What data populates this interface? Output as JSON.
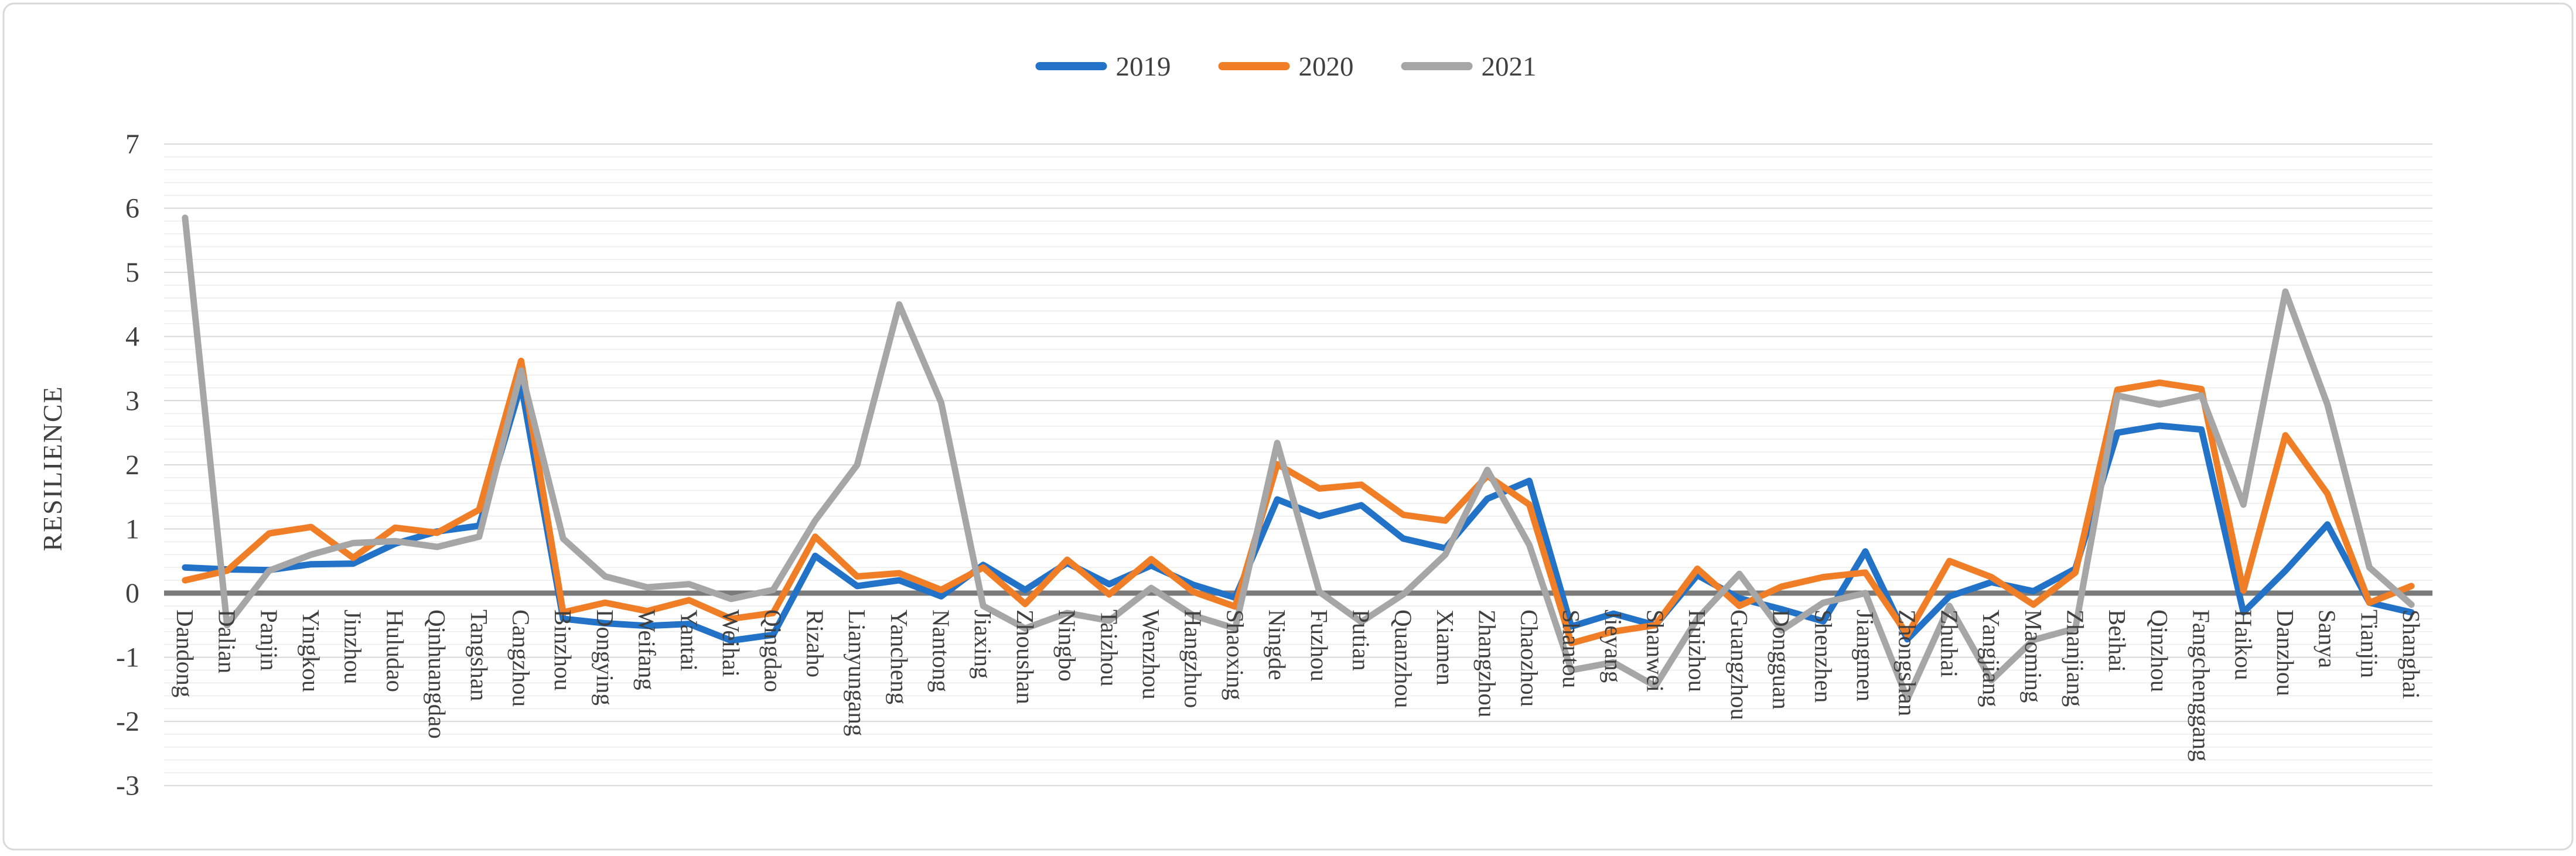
{
  "chart_data": {
    "type": "line",
    "title": "",
    "xlabel": "",
    "ylabel": "RESILIENCE",
    "ylim": [
      -3,
      7
    ],
    "y_major_step": 1,
    "y_minor_step": 0.2,
    "y_tick_labels": [
      "7",
      "6",
      "5",
      "4",
      "3",
      "2",
      "1",
      "0",
      "-1",
      "-2",
      "-3"
    ],
    "grid": true,
    "legend_position": "top-center",
    "categories": [
      "Dandong",
      "Dalian",
      "Panjin",
      "Yingkou",
      "Jinzhou",
      "Huludao",
      "Qinhuangdao",
      "Tangshan",
      "Cangzhou",
      "Binzhou",
      "Dongying",
      "Weifang",
      "Yantai",
      "Weihai",
      "Qingdao",
      "Rizaho",
      "Lianyungang",
      "Yancheng",
      "Nantong",
      "Jiaxing",
      "Zhoushan",
      "Ningbo",
      "Taizhou",
      "Wenzhou",
      "Hangzhuo",
      "Shaoxing",
      "Ningde",
      "Fuzhou",
      "Putian",
      "Quanzhou",
      "Xiamen",
      "Zhangzhou",
      "Chaozhou",
      "Shantou",
      "Jieyang",
      "Shanwei",
      "Huizhou",
      "Guangzhou",
      "Dongguan",
      "Shenzhen",
      "Jiangmen",
      "Zhongshan",
      "Zhuhai",
      "Yangjiang",
      "Maoming",
      "Zhanjiang",
      "Beihai",
      "Qinzhou",
      "Fangchenggang",
      "Haikou",
      "Danzhou",
      "Sanya",
      "Tianjin",
      "Shanghai"
    ],
    "series": [
      {
        "name": "2019",
        "color": "#2272C8",
        "values": [
          0.4,
          0.37,
          0.36,
          0.45,
          0.46,
          0.77,
          0.96,
          1.05,
          3.25,
          -0.4,
          -0.47,
          -0.51,
          -0.48,
          -0.74,
          -0.65,
          0.58,
          0.11,
          0.2,
          -0.05,
          0.44,
          0.05,
          0.47,
          0.14,
          0.43,
          0.13,
          -0.07,
          1.46,
          1.2,
          1.37,
          0.85,
          0.7,
          1.47,
          1.75,
          -0.52,
          -0.32,
          -0.5,
          0.28,
          -0.08,
          -0.25,
          -0.44,
          0.65,
          -0.72,
          -0.05,
          0.17,
          0.03,
          0.38,
          2.5,
          2.61,
          2.55,
          -0.3,
          0.35,
          1.07,
          -0.15,
          -0.3
        ]
      },
      {
        "name": "2020",
        "color": "#F07E27",
        "values": [
          0.2,
          0.35,
          0.93,
          1.03,
          0.55,
          1.02,
          0.94,
          1.3,
          3.62,
          -0.3,
          -0.15,
          -0.28,
          -0.11,
          -0.4,
          -0.31,
          0.88,
          0.26,
          0.31,
          0.05,
          0.4,
          -0.17,
          0.52,
          -0.02,
          0.53,
          0.02,
          -0.21,
          2.01,
          1.63,
          1.69,
          1.22,
          1.13,
          1.83,
          1.38,
          -0.78,
          -0.6,
          -0.5,
          0.38,
          -0.2,
          0.1,
          0.25,
          0.32,
          -0.65,
          0.5,
          0.25,
          -0.18,
          0.32,
          3.17,
          3.28,
          3.18,
          0.04,
          2.46,
          1.55,
          -0.15,
          0.11
        ]
      },
      {
        "name": "2021",
        "color": "#A6A6A6",
        "values": [
          5.85,
          -0.5,
          0.35,
          0.6,
          0.78,
          0.81,
          0.72,
          0.88,
          3.47,
          0.85,
          0.26,
          0.09,
          0.14,
          -0.09,
          0.05,
          1.13,
          2.0,
          4.5,
          2.97,
          -0.2,
          -0.55,
          -0.31,
          -0.43,
          0.08,
          -0.35,
          -0.55,
          2.34,
          0.02,
          -0.45,
          -0.02,
          0.6,
          1.92,
          0.75,
          -1.2,
          -1.08,
          -1.45,
          -0.4,
          0.3,
          -0.58,
          -0.15,
          0.0,
          -1.65,
          -0.2,
          -1.36,
          -0.73,
          -0.55,
          3.08,
          2.94,
          3.08,
          1.38,
          4.7,
          2.94,
          0.4,
          -0.18
        ]
      }
    ],
    "colors": {
      "text": "#404040",
      "axis_line": "#7A7A7A",
      "major_grid": "#D8D8D8",
      "minor_grid": "#ECECEC",
      "border": "#D9D9D9",
      "background": "#FFFFFF"
    }
  }
}
